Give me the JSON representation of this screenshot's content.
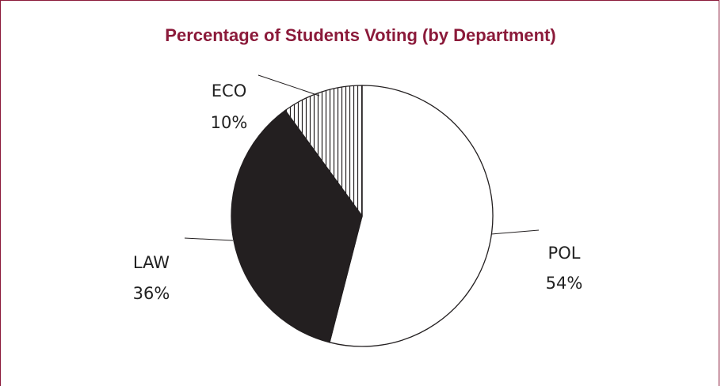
{
  "colors": {
    "title": "#8b1a3a",
    "frame": "#8b1a3a",
    "law": "#231f20",
    "pol": "#ffffff",
    "eco_hatch": "#231f20"
  },
  "chart_data": {
    "type": "pie",
    "title": "Percentage of Students Voting (by Department)",
    "slices": [
      {
        "label": "POL",
        "value": 54,
        "value_label": "54%",
        "fill": "none"
      },
      {
        "label": "LAW",
        "value": 36,
        "value_label": "36%",
        "fill": "solid-black"
      },
      {
        "label": "ECO",
        "value": 10,
        "value_label": "10%",
        "fill": "vertical-hatch"
      }
    ],
    "start": "12 o'clock, clockwise"
  }
}
